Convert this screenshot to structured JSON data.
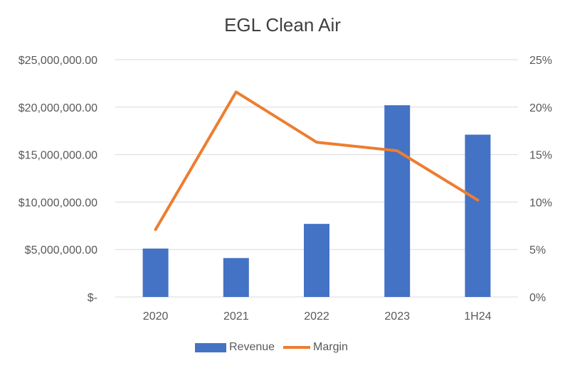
{
  "chart_data": {
    "type": "bar",
    "title": "EGL Clean Air",
    "categories": [
      "2020",
      "2021",
      "2022",
      "2023",
      "1H24"
    ],
    "series": [
      {
        "name": "Revenue",
        "type": "bar",
        "axis": "left",
        "color": "#4472c4",
        "values": [
          5100000,
          4100000,
          7700000,
          20200000,
          17100000
        ]
      },
      {
        "name": "Margin",
        "type": "line",
        "axis": "right",
        "color": "#ed7d31",
        "values": [
          7.1,
          21.6,
          16.3,
          15.4,
          10.2
        ]
      }
    ],
    "y_left": {
      "ylim": [
        0,
        25000000
      ],
      "tick_labels": [
        "$-",
        "$5,000,000.00",
        "$10,000,000.00",
        "$15,000,000.00",
        "$20,000,000.00",
        "$25,000,000.00"
      ]
    },
    "y_right": {
      "ylim": [
        0,
        25
      ],
      "tick_labels": [
        "0%",
        "5%",
        "10%",
        "15%",
        "20%",
        "25%"
      ]
    },
    "grid": true,
    "legend_position": "bottom"
  }
}
